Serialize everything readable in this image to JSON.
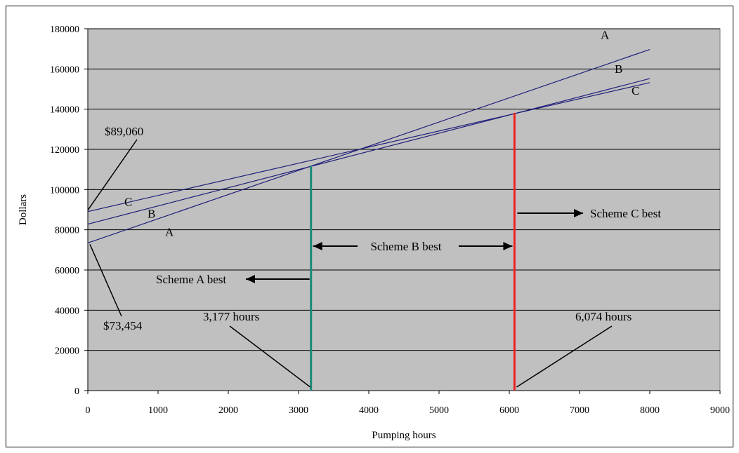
{
  "chart_data": {
    "type": "line",
    "title": "",
    "xlabel": "Pumping hours",
    "ylabel": "Dollars",
    "xlim": [
      0,
      9000
    ],
    "ylim": [
      0,
      180000
    ],
    "x_ticks": [
      0,
      1000,
      2000,
      3000,
      4000,
      5000,
      6000,
      7000,
      8000,
      9000
    ],
    "y_ticks": [
      0,
      20000,
      40000,
      60000,
      80000,
      100000,
      120000,
      140000,
      160000,
      180000
    ],
    "grid": "horizontal",
    "plot_background": "#c0c0c0",
    "line_color": "#1f1f7a",
    "series": [
      {
        "name": "A",
        "x": [
          0,
          8000
        ],
        "y": [
          73454,
          169700
        ],
        "label_end": "A",
        "label_start": "A"
      },
      {
        "name": "B",
        "x": [
          0,
          8000
        ],
        "y": [
          82800,
          155200
        ],
        "label_end": "B",
        "label_start": "B"
      },
      {
        "name": "C",
        "x": [
          0,
          8000
        ],
        "y": [
          89060,
          153200
        ],
        "label_end": "C",
        "label_start": "C"
      }
    ],
    "breakeven_lines": [
      {
        "x": 3177,
        "y_top": 111700,
        "color": "#1a8a7a",
        "label": "3,177 hours"
      },
      {
        "x": 6074,
        "y_top": 138200,
        "color": "#ee2222",
        "label": "6,074 hours"
      }
    ],
    "annotations": {
      "intercept_c": "$89,060",
      "intercept_a": "$73,454",
      "scheme_a": "Scheme A best",
      "scheme_b": "Scheme B best",
      "scheme_c": "Scheme C best"
    }
  }
}
